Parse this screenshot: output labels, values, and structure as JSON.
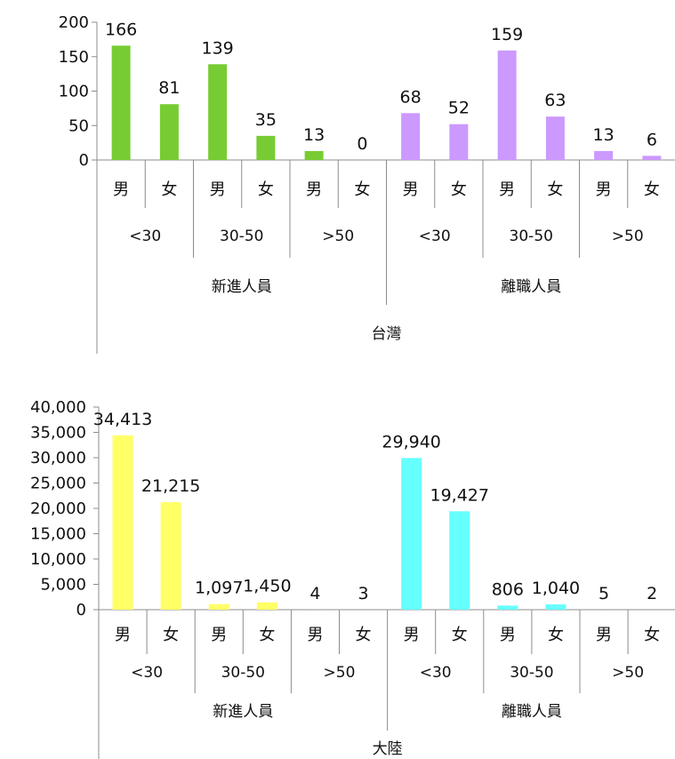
{
  "chart_data": [
    {
      "type": "bar",
      "title": "",
      "group_label": "台灣",
      "ylim": [
        0,
        200
      ],
      "yticks": [
        0,
        50,
        100,
        150,
        200
      ],
      "ytick_labels": [
        "0",
        "50",
        "100",
        "150",
        "200"
      ],
      "groups": [
        {
          "label": "新進人員",
          "color": "#77cc33",
          "age_bands": [
            "<30",
            "30-50",
            ">50"
          ],
          "genders": [
            "男",
            "女",
            "男",
            "女",
            "男",
            "女"
          ],
          "values": [
            166,
            81,
            139,
            35,
            13,
            0
          ],
          "value_labels": [
            "166",
            "81",
            "139",
            "35",
            "13",
            "0"
          ]
        },
        {
          "label": "離職人員",
          "color": "#cc99ff",
          "age_bands": [
            "<30",
            "30-50",
            ">50"
          ],
          "genders": [
            "男",
            "女",
            "男",
            "女",
            "男",
            "女"
          ],
          "values": [
            68,
            52,
            159,
            63,
            13,
            6
          ],
          "value_labels": [
            "68",
            "52",
            "159",
            "63",
            "13",
            "6"
          ]
        }
      ]
    },
    {
      "type": "bar",
      "title": "",
      "group_label": "大陸",
      "ylim": [
        0,
        40000
      ],
      "yticks": [
        0,
        5000,
        10000,
        15000,
        20000,
        25000,
        30000,
        35000,
        40000
      ],
      "ytick_labels": [
        "0",
        "5,000",
        "10,000",
        "15,000",
        "20,000",
        "25,000",
        "30,000",
        "35,000",
        "40,000"
      ],
      "groups": [
        {
          "label": "新進人員",
          "color": "#ffff66",
          "age_bands": [
            "<30",
            "30-50",
            ">50"
          ],
          "genders": [
            "男",
            "女",
            "男",
            "女",
            "男",
            "女"
          ],
          "values": [
            34413,
            21215,
            1097,
            1450,
            4,
            3
          ],
          "value_labels": [
            "34,413",
            "21,215",
            "1,097",
            "1,450",
            "4",
            "3"
          ]
        },
        {
          "label": "離職人員",
          "color": "#66ffff",
          "age_bands": [
            "<30",
            "30-50",
            ">50"
          ],
          "genders": [
            "男",
            "女",
            "男",
            "女",
            "男",
            "女"
          ],
          "values": [
            29940,
            19427,
            806,
            1040,
            5,
            2
          ],
          "value_labels": [
            "29,940",
            "19,427",
            "806",
            "1,040",
            "5",
            "2"
          ]
        }
      ]
    }
  ]
}
